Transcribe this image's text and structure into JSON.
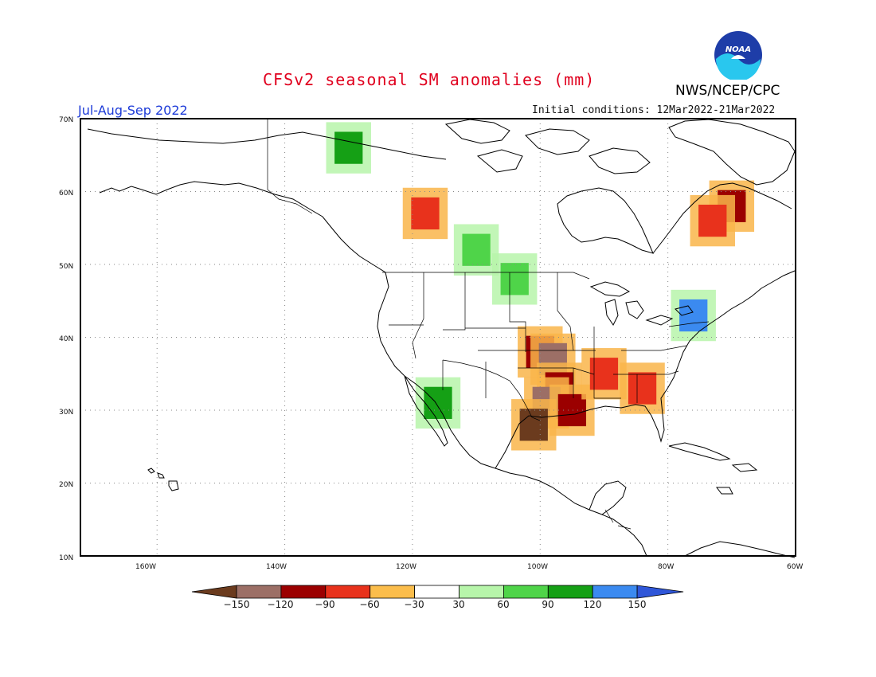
{
  "header": {
    "title": "CFSv2 seasonal SM anomalies (mm)",
    "period": "Jul-Aug-Sep 2022",
    "initial_conditions": "Initial conditions: 12Mar2022-21Mar2022",
    "agency": "NWS/NCEP/CPC",
    "logo_text": "NOAA"
  },
  "map": {
    "region": "North America",
    "lon_range": [
      -172,
      -60
    ],
    "lat_range": [
      10,
      70
    ],
    "lat_labels": [
      "70N",
      "60N",
      "50N",
      "40N",
      "30N",
      "20N",
      "10N"
    ],
    "lon_labels": [
      "160W",
      "140W",
      "120W",
      "100W",
      "80W",
      "60W"
    ],
    "coast_color": "#000000",
    "border_color": "#000000",
    "grid_color": "#888888"
  },
  "colorbar": {
    "labels": [
      "−150",
      "−120",
      "−90",
      "−60",
      "−30",
      "30",
      "60",
      "90",
      "120",
      "150"
    ],
    "colors": [
      "#6b3b1e",
      "#9c6f66",
      "#9b0000",
      "#e8321c",
      "#f2a51f",
      "#fbbd4b",
      "#ffffff",
      "#b7f5aa",
      "#4fd449",
      "#15a015",
      "#3b8af0",
      "#2f56d8"
    ],
    "units": "mm"
  },
  "anomaly_cells": [
    {
      "lon": -100,
      "lat": 38,
      "value": -90
    },
    {
      "lon": -98,
      "lat": 37,
      "value": -120
    },
    {
      "lon": -97,
      "lat": 33,
      "value": -90
    },
    {
      "lon": -99,
      "lat": 31,
      "value": -120
    },
    {
      "lon": -95,
      "lat": 30,
      "value": -90
    },
    {
      "lon": -101,
      "lat": 28,
      "value": -150
    },
    {
      "lon": -90,
      "lat": 35,
      "value": -60
    },
    {
      "lon": -84,
      "lat": 33,
      "value": -60
    },
    {
      "lon": -70,
      "lat": 58,
      "value": -90
    },
    {
      "lon": -73,
      "lat": 56,
      "value": -60
    },
    {
      "lon": -118,
      "lat": 57,
      "value": -60
    },
    {
      "lon": -104,
      "lat": 48,
      "value": 60
    },
    {
      "lon": -110,
      "lat": 52,
      "value": 60
    },
    {
      "lon": -130,
      "lat": 66,
      "value": 90
    },
    {
      "lon": -76,
      "lat": 43,
      "value": 120
    },
    {
      "lon": -116,
      "lat": 31,
      "value": 90
    }
  ]
}
